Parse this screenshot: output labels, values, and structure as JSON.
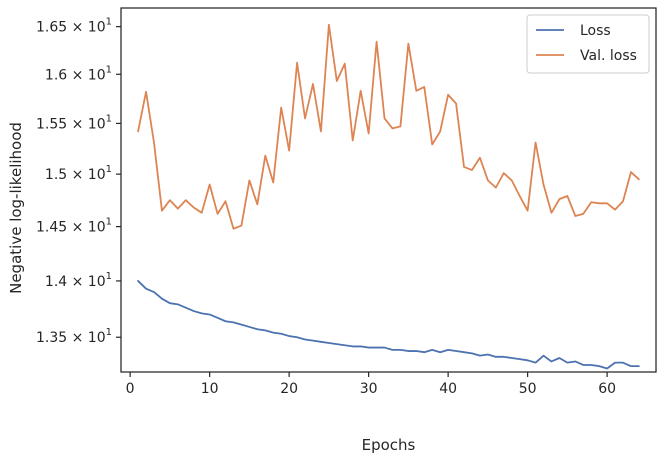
{
  "chart_data": {
    "type": "line",
    "xlabel": "Epochs",
    "ylabel": "Negative log-likelihood",
    "xlim": [
      -1.15,
      66.15
    ],
    "ylim": [
      13.2,
      16.7
    ],
    "yscale": "log",
    "grid": false,
    "legend_position": "top-right",
    "x_ticks": [
      0,
      10,
      20,
      30,
      40,
      50,
      60
    ],
    "x_tick_labels": [
      "0",
      "10",
      "20",
      "30",
      "40",
      "50",
      "60"
    ],
    "y_ticks": [
      13.5,
      14.0,
      14.5,
      15.0,
      15.5,
      16.0,
      16.5
    ],
    "y_tick_bases": [
      "1.35",
      "1.4",
      "1.45",
      "1.5",
      "1.55",
      "1.6",
      "1.65"
    ],
    "y_tick_mult": "×",
    "y_tick_base10": "10",
    "y_tick_exp": "1",
    "series": [
      {
        "name": "Loss",
        "color": "#4c72b0",
        "x": [
          1,
          2,
          3,
          4,
          5,
          6,
          7,
          8,
          9,
          10,
          11,
          12,
          13,
          14,
          15,
          16,
          17,
          18,
          19,
          20,
          21,
          22,
          23,
          24,
          25,
          26,
          27,
          28,
          29,
          30,
          31,
          32,
          33,
          34,
          35,
          36,
          37,
          38,
          39,
          40,
          41,
          42,
          43,
          44,
          45,
          46,
          47,
          48,
          49,
          50,
          51,
          52,
          53,
          54,
          55,
          56,
          57,
          58,
          59,
          60,
          61,
          62,
          63,
          64
        ],
        "values": [
          14.0,
          13.93,
          13.9,
          13.84,
          13.8,
          13.79,
          13.76,
          13.73,
          13.71,
          13.7,
          13.67,
          13.64,
          13.63,
          13.61,
          13.59,
          13.57,
          13.56,
          13.54,
          13.53,
          13.51,
          13.5,
          13.48,
          13.47,
          13.46,
          13.45,
          13.44,
          13.43,
          13.42,
          13.42,
          13.41,
          13.41,
          13.41,
          13.39,
          13.39,
          13.38,
          13.38,
          13.37,
          13.39,
          13.37,
          13.39,
          13.38,
          13.37,
          13.36,
          13.34,
          13.35,
          13.33,
          13.33,
          13.32,
          13.31,
          13.3,
          13.28,
          13.34,
          13.29,
          13.32,
          13.28,
          13.29,
          13.26,
          13.26,
          13.25,
          13.23,
          13.28,
          13.28,
          13.25,
          13.25
        ]
      },
      {
        "name": "Val. loss",
        "color": "#dd8452",
        "x": [
          1,
          2,
          3,
          4,
          5,
          6,
          7,
          8,
          9,
          10,
          11,
          12,
          13,
          14,
          15,
          16,
          17,
          18,
          19,
          20,
          21,
          22,
          23,
          24,
          25,
          26,
          27,
          28,
          29,
          30,
          31,
          32,
          33,
          34,
          35,
          36,
          37,
          38,
          39,
          40,
          41,
          42,
          43,
          44,
          45,
          46,
          47,
          48,
          49,
          50,
          51,
          52,
          53,
          54,
          55,
          56,
          57,
          58,
          59,
          60,
          61,
          62,
          63,
          64
        ],
        "values": [
          15.42,
          15.82,
          15.31,
          14.65,
          14.75,
          14.67,
          14.75,
          14.68,
          14.63,
          14.9,
          14.62,
          14.74,
          14.48,
          14.51,
          14.94,
          14.71,
          15.18,
          14.92,
          15.66,
          15.23,
          16.12,
          15.55,
          15.9,
          15.42,
          16.52,
          15.93,
          16.11,
          15.33,
          15.83,
          15.4,
          16.34,
          15.55,
          15.45,
          15.47,
          16.32,
          15.83,
          15.87,
          15.29,
          15.42,
          15.79,
          15.7,
          15.07,
          15.04,
          15.16,
          14.94,
          14.87,
          15.01,
          14.94,
          14.79,
          14.65,
          15.31,
          14.9,
          14.63,
          14.76,
          14.79,
          14.6,
          14.62,
          14.73,
          14.72,
          14.72,
          14.66,
          14.74,
          15.02,
          14.95
        ]
      }
    ]
  }
}
